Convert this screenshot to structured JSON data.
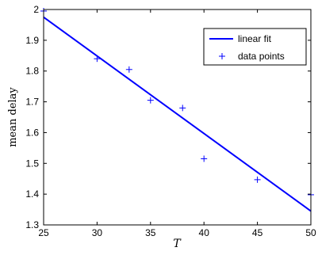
{
  "chart_data": {
    "type": "scatter",
    "xlabel": "T",
    "ylabel": "mean delay",
    "xlim": [
      25,
      50
    ],
    "ylim": [
      1.3,
      2.0
    ],
    "xticks": [
      "25",
      "30",
      "35",
      "40",
      "45",
      "50"
    ],
    "yticks": [
      "1.3",
      "1.4",
      "1.5",
      "1.6",
      "1.7",
      "1.8",
      "1.9",
      "2"
    ],
    "grid": false,
    "legend_position": "top-right",
    "series": [
      {
        "name": "linear fit",
        "kind": "line",
        "color": "#0000ff",
        "x": [
          25,
          50
        ],
        "y": [
          1.975,
          1.345
        ]
      },
      {
        "name": "data points",
        "kind": "marker",
        "marker": "+",
        "color": "#0000ff",
        "x": [
          25,
          30,
          33,
          35,
          38,
          40,
          45,
          50
        ],
        "y": [
          1.995,
          1.84,
          1.805,
          1.705,
          1.68,
          1.515,
          1.447,
          1.398
        ]
      }
    ]
  }
}
